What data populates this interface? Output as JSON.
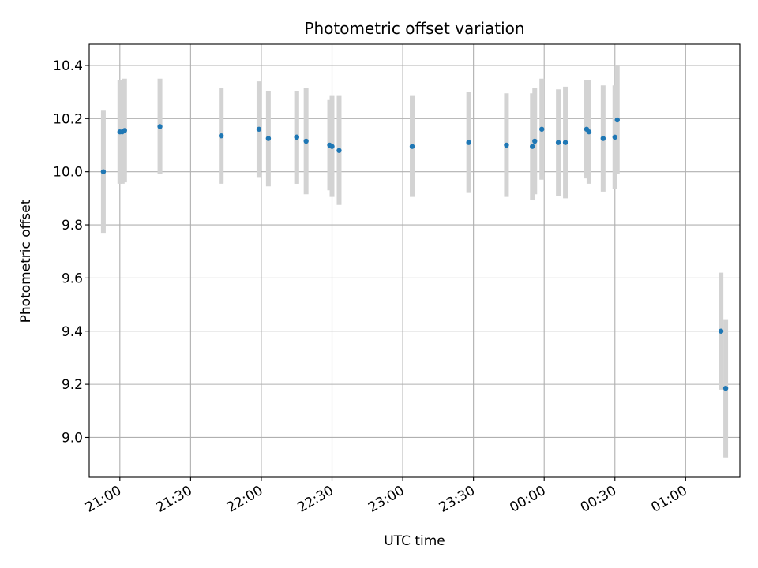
{
  "chart_data": {
    "type": "scatter",
    "title": "Photometric offset variation",
    "xlabel": "UTC time",
    "ylabel": "Photometric offset",
    "xlim": [
      "20:47",
      "01:23"
    ],
    "ylim": [
      8.85,
      10.48
    ],
    "grid": true,
    "x_ticks": [
      "21:00",
      "21:30",
      "22:00",
      "22:30",
      "23:00",
      "23:30",
      "00:00",
      "00:30",
      "01:00"
    ],
    "y_ticks": [
      "9.0",
      "9.2",
      "9.4",
      "9.6",
      "9.8",
      "10.0",
      "10.2",
      "10.4"
    ],
    "colors": {
      "marker": "#1f77b4",
      "errorbar": "#d3d3d3",
      "grid": "#b0b0b0"
    },
    "series": [
      {
        "x": [
          "20:53",
          "21:00",
          "21:01",
          "21:02",
          "21:17",
          "21:43",
          "21:59",
          "22:03",
          "22:15",
          "22:15",
          "22:19",
          "22:29",
          "22:30",
          "22:33",
          "23:04",
          "23:28",
          "23:44",
          "23:55",
          "23:56",
          "23:59",
          "00:06",
          "00:09",
          "00:18",
          "00:19",
          "00:25",
          "00:30",
          "00:31",
          "01:15",
          "01:17"
        ],
        "y": [
          10.0,
          10.15,
          10.15,
          10.155,
          10.17,
          10.135,
          10.16,
          10.125,
          10.13,
          10.13,
          10.115,
          10.1,
          10.095,
          10.08,
          10.095,
          10.11,
          10.1,
          10.095,
          10.115,
          10.16,
          10.11,
          10.11,
          10.16,
          10.15,
          10.125,
          10.13,
          10.195,
          9.4,
          9.185
        ],
        "yerr": [
          0.23,
          0.195,
          0.195,
          0.195,
          0.18,
          0.18,
          0.18,
          0.18,
          0.175,
          0.175,
          0.2,
          0.17,
          0.19,
          0.205,
          0.19,
          0.19,
          0.195,
          0.2,
          0.2,
          0.19,
          0.2,
          0.21,
          0.185,
          0.195,
          0.2,
          0.195,
          0.205,
          0.22,
          0.26
        ]
      }
    ]
  }
}
